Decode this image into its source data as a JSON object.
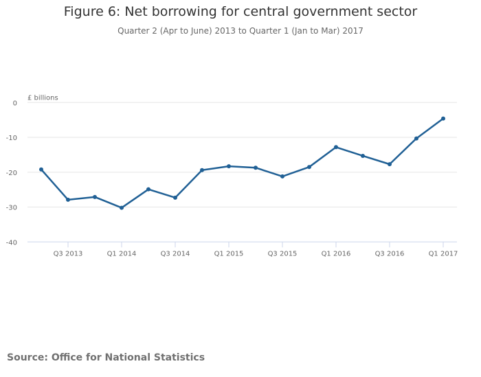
{
  "chart_data": {
    "type": "line",
    "title": "Figure 6: Net borrowing for central government sector",
    "subtitle": "Quarter 2 (Apr to June) 2013 to Quarter 1 (Jan to Mar) 2017",
    "ylabel": "£ billions",
    "xlabel": "",
    "ylim": [
      -40,
      0
    ],
    "yticks": [
      0,
      -10,
      -20,
      -30,
      -40
    ],
    "categories": [
      "Q2 2013",
      "Q3 2013",
      "Q4 2013",
      "Q1 2014",
      "Q2 2014",
      "Q3 2014",
      "Q4 2014",
      "Q1 2015",
      "Q2 2015",
      "Q3 2015",
      "Q4 2015",
      "Q1 2016",
      "Q2 2016",
      "Q3 2016",
      "Q4 2016",
      "Q1 2017"
    ],
    "xtick_labels": [
      "Q3 2013",
      "Q1 2014",
      "Q3 2014",
      "Q1 2015",
      "Q3 2015",
      "Q1 2016",
      "Q3 2016",
      "Q1 2017"
    ],
    "series": [
      {
        "values": [
          -19.2,
          -27.9,
          -27.1,
          -30.2,
          -24.9,
          -27.3,
          -19.4,
          -18.3,
          -18.7,
          -21.2,
          -18.5,
          -12.8,
          -15.3,
          -17.7,
          -10.3,
          -4.6
        ],
        "color": "#206095"
      }
    ],
    "grid": true,
    "legend": "none"
  },
  "source": "Source: Office for National Statistics"
}
